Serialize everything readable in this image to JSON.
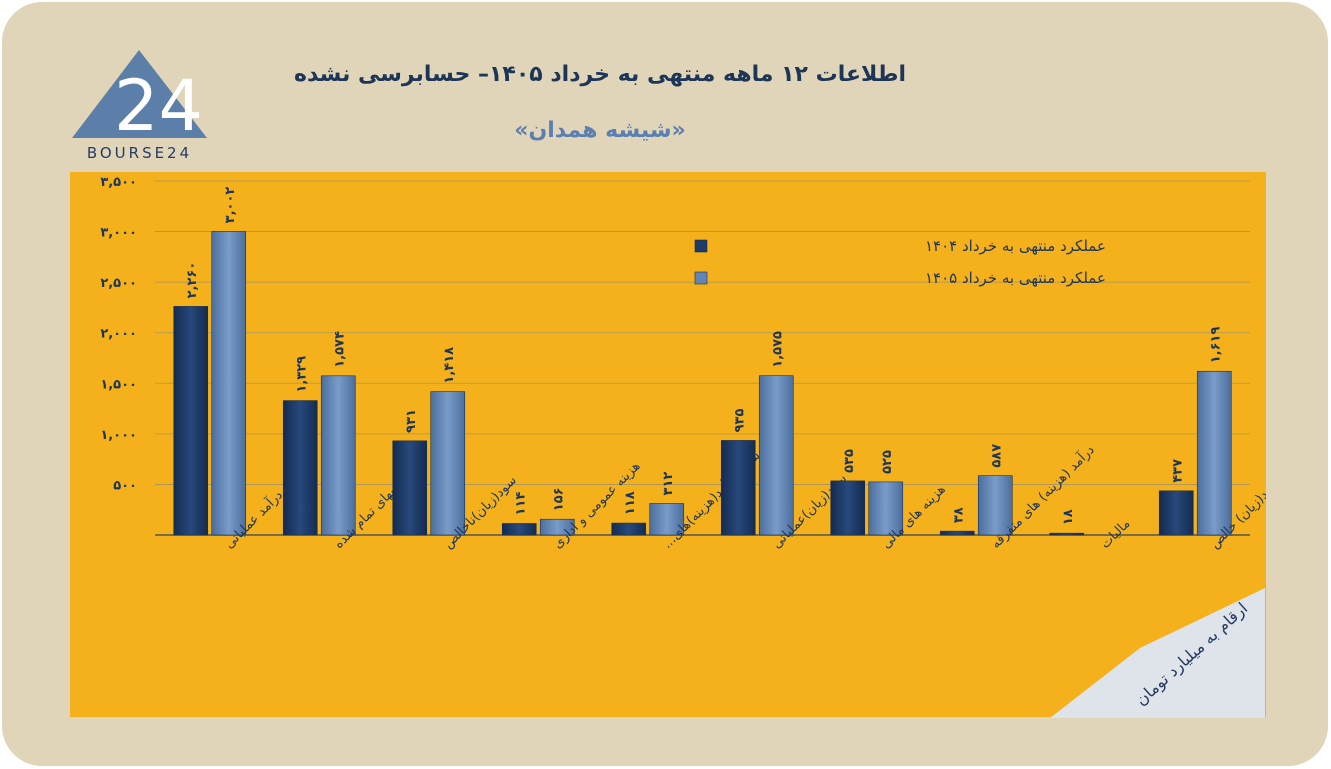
{
  "header": {
    "title": "اطلاعات ۱۲ ماهه منتهی به خرداد ۱۴۰۵– حسابرسی نشده",
    "subtitle": "«شیشه همدان»"
  },
  "logo": {
    "mark": "24",
    "text": "BOURSE24"
  },
  "unit_note": "ارقام به میلیارد تومان",
  "colors": {
    "background": "#e0d5b8",
    "panel": "#f4b11c",
    "series_1404": "#1e3a66",
    "series_1405": "#6385b3",
    "title": "#1d3557"
  },
  "chart_data": {
    "type": "bar",
    "categories": [
      "درآمد عملیاتی",
      "بهای تمام شده",
      "سود(زیان)ناخالص",
      "هزینه عمومی و اداری",
      "خالص سایر درآمد(هزینه)های...",
      "سود(زیان)عملیاتی",
      "هزینه های مالی",
      "درآمد (هزینه) های متفرقه",
      "مالیات",
      "سود(زیان) خالص"
    ],
    "series": [
      {
        "name": "عملکرد منتهی به خرداد ۱۴۰۴",
        "values": [
          2260,
          1329,
          931,
          114,
          118,
          935,
          535,
          38,
          18,
          437
        ],
        "labels": [
          "۲,۲۶۰",
          "۱,۳۲۹",
          "۹۳۱",
          "۱۱۴",
          "۱۱۸",
          "۹۳۵",
          "۵۳۵",
          "۳۸",
          "۱۸",
          "۴۳۷"
        ]
      },
      {
        "name": "عملکرد منتهی به خرداد ۱۴۰۵",
        "values": [
          3002,
          1574,
          1418,
          156,
          312,
          1575,
          525,
          587,
          0,
          1619
        ],
        "labels": [
          "۳,۰۰۲",
          "۱,۵۷۴",
          "۱,۴۱۸",
          "۱۵۶",
          "۳۱۲",
          "۱,۵۷۵",
          "۵۲۵",
          "۵۸۷",
          "",
          "۱,۶۱۹"
        ]
      }
    ],
    "ylim": [
      0,
      3500
    ],
    "yticks": [
      500,
      1000,
      1500,
      2000,
      2500,
      3000,
      3500
    ],
    "ytick_labels": [
      "۵۰۰",
      "۱,۰۰۰",
      "۱,۵۰۰",
      "۲,۰۰۰",
      "۲,۵۰۰",
      "۳,۰۰۰",
      "۳,۵۰۰"
    ],
    "grid": true,
    "legend": "top-right"
  }
}
